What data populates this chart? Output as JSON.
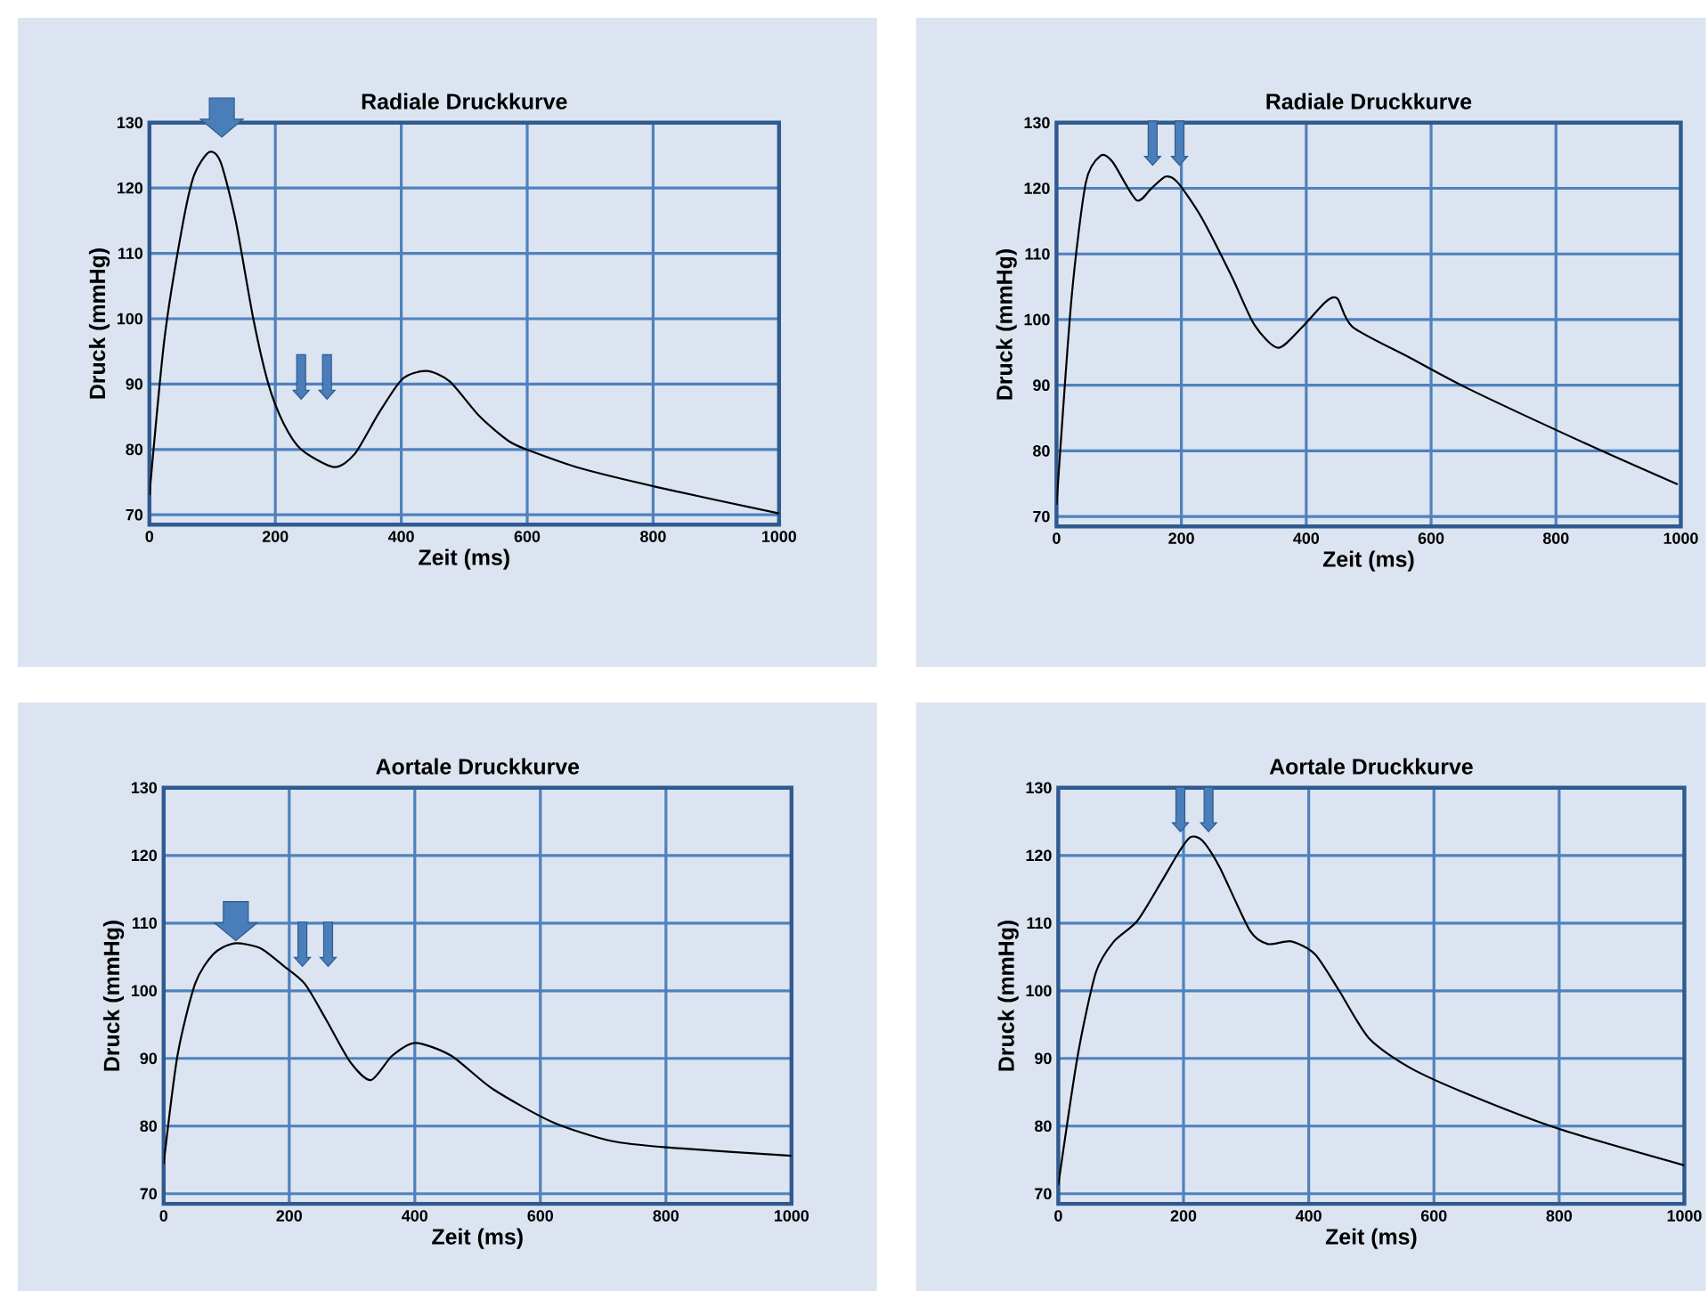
{
  "chart_data": [
    {
      "type": "line",
      "title": "Radiale Druckkurve",
      "xlabel": "Zeit (ms)",
      "ylabel": "Druck (mmHg)",
      "color": "#000000",
      "grid": true,
      "xlim": [
        0,
        1000
      ],
      "ylim": [
        68.5,
        130
      ],
      "xticks": [
        0,
        200,
        400,
        600,
        800,
        1000
      ],
      "yticks": [
        70,
        80,
        90,
        100,
        110,
        120,
        130
      ],
      "x": [
        0,
        24,
        52,
        71,
        95,
        113,
        137,
        165,
        189,
        213,
        241,
        293,
        326,
        364,
        402,
        440,
        477,
        525,
        572,
        610,
        685,
        808,
        1000
      ],
      "values": [
        73,
        97,
        114,
        122,
        125.5,
        124,
        115,
        100,
        90,
        84,
        80,
        77.3,
        79.3,
        85.5,
        90.8,
        92,
        90.4,
        85,
        81.2,
        79.6,
        77.1,
        74.2,
        70.2
      ]
    },
    {
      "type": "line",
      "title": "Radiale Druckkurve",
      "xlabel": "Zeit (ms)",
      "ylabel": "Druck (mmHg)",
      "color": "#000000",
      "grid": true,
      "xlim": [
        0,
        1000
      ],
      "ylim": [
        68.5,
        130
      ],
      "xticks": [
        0,
        200,
        400,
        600,
        800,
        1000
      ],
      "yticks": [
        70,
        80,
        90,
        100,
        110,
        120,
        130
      ],
      "x": [
        0,
        24,
        47,
        71,
        90,
        128,
        152,
        175,
        194,
        232,
        280,
        317,
        355,
        393,
        431,
        450,
        474,
        564,
        659,
        848,
        995
      ],
      "values": [
        71.8,
        103.2,
        120.9,
        125,
        124,
        118.2,
        120,
        121.8,
        120.9,
        115.6,
        106.7,
        99.2,
        95.7,
        98.8,
        102.7,
        103.2,
        98.9,
        94.3,
        89.5,
        81.1,
        74.9
      ]
    },
    {
      "type": "line",
      "title": "Aortale Druckkurve",
      "xlabel": "Zeit (ms)",
      "ylabel": "Druck (mmHg)",
      "color": "#000000",
      "grid": true,
      "xlim": [
        0,
        1000
      ],
      "ylim": [
        68.5,
        130
      ],
      "xticks": [
        0,
        200,
        400,
        600,
        800,
        1000
      ],
      "yticks": [
        70,
        80,
        90,
        100,
        110,
        120,
        130
      ],
      "x": [
        0,
        22,
        50,
        79,
        112,
        154,
        192,
        225,
        259,
        297,
        330,
        364,
        401,
        458,
        524,
        619,
        713,
        809,
        1000
      ],
      "values": [
        74.4,
        90.4,
        101,
        105.4,
        107,
        106.3,
        103.6,
        101,
        95.7,
        89.5,
        86.8,
        90.4,
        92.3,
        90.4,
        85.5,
        80.6,
        77.8,
        76.8,
        75.6
      ]
    },
    {
      "type": "line",
      "title": "Aortale Druckkurve",
      "xlabel": "Zeit (ms)",
      "ylabel": "Druck (mmHg)",
      "color": "#000000",
      "grid": true,
      "xlim": [
        0,
        1000
      ],
      "ylim": [
        68.5,
        130
      ],
      "xticks": [
        0,
        200,
        400,
        600,
        800,
        1000
      ],
      "yticks": [
        70,
        80,
        90,
        100,
        110,
        120,
        130
      ],
      "x": [
        0,
        31,
        60,
        88,
        126,
        164,
        192,
        211,
        230,
        258,
        306,
        335,
        372,
        410,
        448,
        496,
        562,
        657,
        799,
        1000
      ],
      "values": [
        71.3,
        90.4,
        102.7,
        107.2,
        110.3,
        116,
        120.4,
        122.7,
        122.2,
        118.2,
        108.9,
        106.9,
        107.3,
        105.4,
        100.1,
        93,
        88.6,
        84.6,
        79.6,
        74.2
      ]
    }
  ]
}
